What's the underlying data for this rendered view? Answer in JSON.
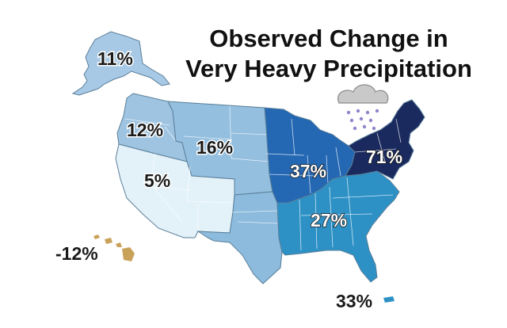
{
  "title": {
    "line1": "Observed Change in",
    "line2": "Very Heavy Precipitation"
  },
  "regions": [
    {
      "name": "Alaska",
      "label": "11%",
      "value": 11,
      "color": "#a7c9e6"
    },
    {
      "name": "Northwest",
      "label": "12%",
      "value": 12,
      "color": "#9ec4e1"
    },
    {
      "name": "Great Plains North",
      "label": "16%",
      "value": 16,
      "color": "#94bfdf"
    },
    {
      "name": "Southwest",
      "label": "5%",
      "value": 5,
      "color": "#e3f1f9"
    },
    {
      "name": "Great Plains South",
      "label": "",
      "value": null,
      "color": "#8cbbdd"
    },
    {
      "name": "Midwest",
      "label": "37%",
      "value": 37,
      "color": "#2467b2"
    },
    {
      "name": "Northeast",
      "label": "71%",
      "value": 71,
      "color": "#1a2a5e"
    },
    {
      "name": "Southeast",
      "label": "27%",
      "value": 27,
      "color": "#2d91c6"
    },
    {
      "name": "Hawaii",
      "label": "-12%",
      "value": -12,
      "color": "#c9a25a"
    },
    {
      "name": "Puerto Rico",
      "label": "33%",
      "value": 33,
      "color": "#2d91c6"
    }
  ],
  "legend_icon": "rain-cloud-icon"
}
